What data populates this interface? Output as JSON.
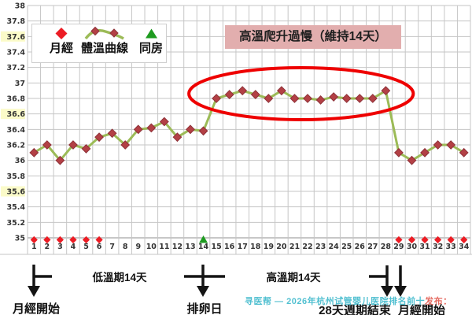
{
  "legend": {
    "menses": "月經",
    "curve": "體溫曲線",
    "intercourse": "同房"
  },
  "annotation_box": {
    "text": "高溫爬升過慢（維持14天）",
    "bg_color": "#e2aeae"
  },
  "footer": {
    "low_phase": "低溫期14天",
    "high_phase": "高溫期14天",
    "menses_start_left": "月經開始",
    "ovulation": "排卵日",
    "cycle_end": "28天週期結束",
    "menses_start_right": "月經開始"
  },
  "watermark": {
    "main": "寻医帮 — 2026年杭州试管婴儿医院排名前十",
    "tail": "发布：",
    "main_color": "#35b6c9",
    "tail_color": "#e05044"
  },
  "chart_data": {
    "type": "line",
    "title": "高溫爬升過慢（維持14天）",
    "xlabel": "",
    "ylabel": "",
    "x": [
      1,
      2,
      3,
      4,
      5,
      6,
      7,
      8,
      9,
      10,
      11,
      12,
      13,
      14,
      15,
      16,
      17,
      18,
      19,
      20,
      21,
      22,
      23,
      24,
      25,
      26,
      27,
      28,
      29,
      30,
      31,
      32,
      33,
      34
    ],
    "series": [
      {
        "name": "體溫曲線",
        "values": [
          36.1,
          36.2,
          36.0,
          36.2,
          36.15,
          36.3,
          36.35,
          36.2,
          36.4,
          36.42,
          36.5,
          36.3,
          36.4,
          36.38,
          36.8,
          36.85,
          36.9,
          36.85,
          36.8,
          36.9,
          36.8,
          36.8,
          36.78,
          36.82,
          36.8,
          36.8,
          36.8,
          36.9,
          36.1,
          36.0,
          36.1,
          36.2,
          36.2,
          36.1
        ]
      }
    ],
    "ylim": [
      35,
      38
    ],
    "y_ticks": [
      35,
      35.2,
      35.4,
      35.6,
      35.8,
      36,
      36.2,
      36.4,
      36.6,
      36.8,
      37,
      37.2,
      37.4,
      37.6,
      37.8,
      38
    ],
    "highlighted_y_ticks": [
      35.6,
      36.6,
      37.6
    ],
    "grid": true,
    "legend_position": "top-left",
    "menstruation_days": [
      1,
      2,
      3,
      4,
      5,
      6,
      29,
      30,
      31,
      32,
      33,
      34
    ],
    "intercourse_days": [
      14
    ],
    "ellipse_annotation": {
      "day_start": 15,
      "day_end": 28,
      "meaning": "high temperature phase circled"
    },
    "colors": {
      "curve_line": "#9cbb57",
      "curve_marker": "#b34045",
      "curve_marker_edge": "#8e3138",
      "menses_marker": "#ec1c24",
      "intercourse_marker": "#1e9b20",
      "ellipse": "#ee0000",
      "grid": "#c6c6c6",
      "axis": "#8f8f8f",
      "tick_highlight": "#fbfbc9"
    }
  }
}
